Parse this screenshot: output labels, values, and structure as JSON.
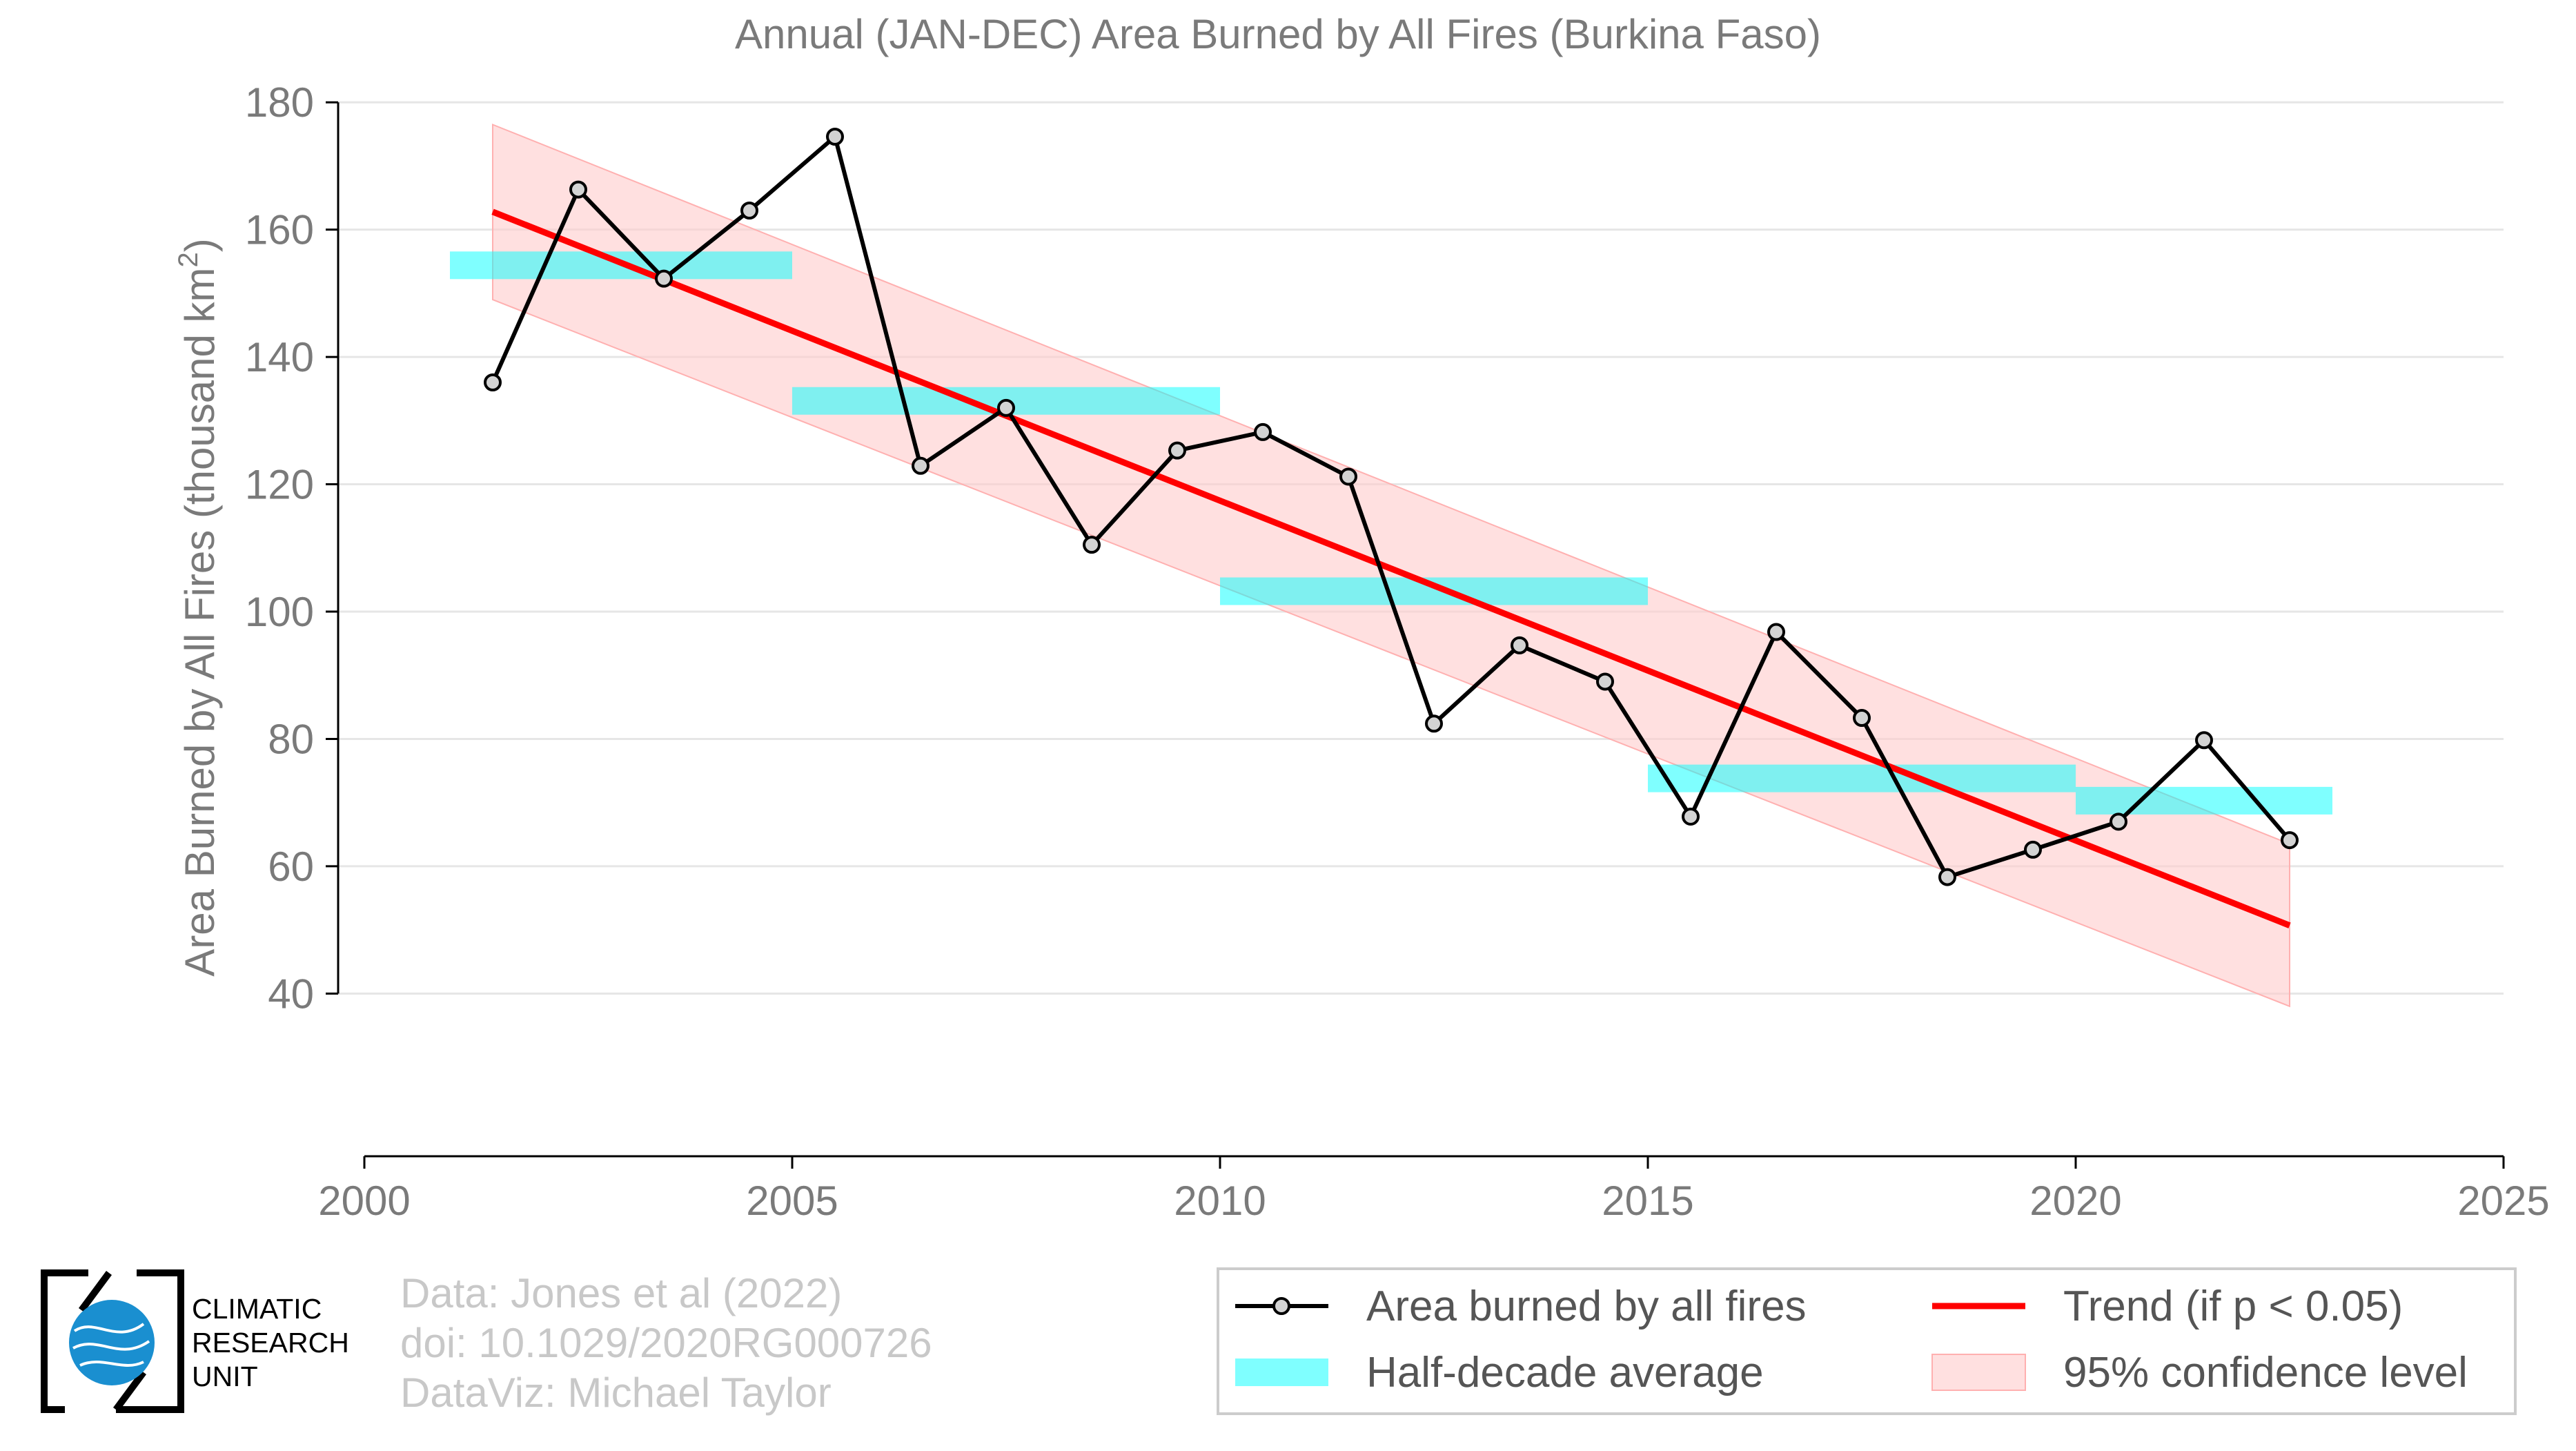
{
  "chart_data": {
    "type": "line",
    "title": "Annual (JAN-DEC) Area Burned by All Fires (Burkina Faso)",
    "ylabel": "Area Burned by All Fires (thousand km",
    "ylabel_sup": "2",
    "ylabel_tail": ")",
    "xlim": [
      2000,
      2025
    ],
    "ylim": [
      28,
      181
    ],
    "xticks": [
      2000,
      2005,
      2010,
      2015,
      2020,
      2025
    ],
    "yticks": [
      40,
      60,
      80,
      100,
      120,
      140,
      160,
      180
    ],
    "grid": "horizontal",
    "series": [
      {
        "name": "Area burned by all fires",
        "color": "#000000",
        "marker_fill": "#d3d3d3",
        "x": [
          2001.5,
          2002.5,
          2003.5,
          2004.5,
          2005.5,
          2006.5,
          2007.5,
          2008.5,
          2009.5,
          2010.5,
          2011.5,
          2012.5,
          2013.5,
          2014.5,
          2015.5,
          2016.5,
          2017.5,
          2018.5,
          2019.5,
          2020.5,
          2021.5,
          2022.5
        ],
        "y": [
          136,
          166.3,
          152.3,
          163,
          174.6,
          122.9,
          132,
          110.5,
          125.3,
          128.2,
          121.2,
          82.4,
          94.7,
          89,
          67.8,
          96.8,
          83.3,
          58.3,
          62.6,
          67,
          79.8,
          64.1
        ]
      }
    ],
    "half_decade_average": {
      "name": "Half-decade average",
      "color": "#00ffff",
      "segments": [
        {
          "x0": 2001,
          "x1": 2005,
          "y": 154.4
        },
        {
          "x0": 2005,
          "x1": 2010,
          "y": 133.1
        },
        {
          "x0": 2010,
          "x1": 2015,
          "y": 103.2
        },
        {
          "x0": 2015,
          "x1": 2020,
          "y": 73.8
        },
        {
          "x0": 2020,
          "x1": 2023,
          "y": 70.3
        }
      ]
    },
    "trend": {
      "name": "Trend (if p < 0.05)",
      "color": "#ff0000",
      "x": [
        2001.5,
        2022.5
      ],
      "y": [
        162.8,
        50.7
      ]
    },
    "confidence": {
      "name": "95% confidence level",
      "color": "#ffcccc",
      "x": [
        2001.5,
        2022.5
      ],
      "upper": [
        176.5,
        63.5
      ],
      "lower": [
        149,
        38
      ]
    },
    "legend_position": "bottom-right",
    "legend": [
      "Area burned by all fires",
      "Trend (if p < 0.05)",
      "Half-decade average",
      "95% confidence level"
    ]
  },
  "credits": {
    "line1": "Data: Jones et al (2022)",
    "line2": "doi: 10.1029/2020RG000726",
    "line3": "DataViz: Michael Taylor"
  },
  "logo": {
    "line1": "CLIMATIC",
    "line2": "RESEARCH",
    "line3": "UNIT",
    "globe_color": "#1a8fd0"
  }
}
